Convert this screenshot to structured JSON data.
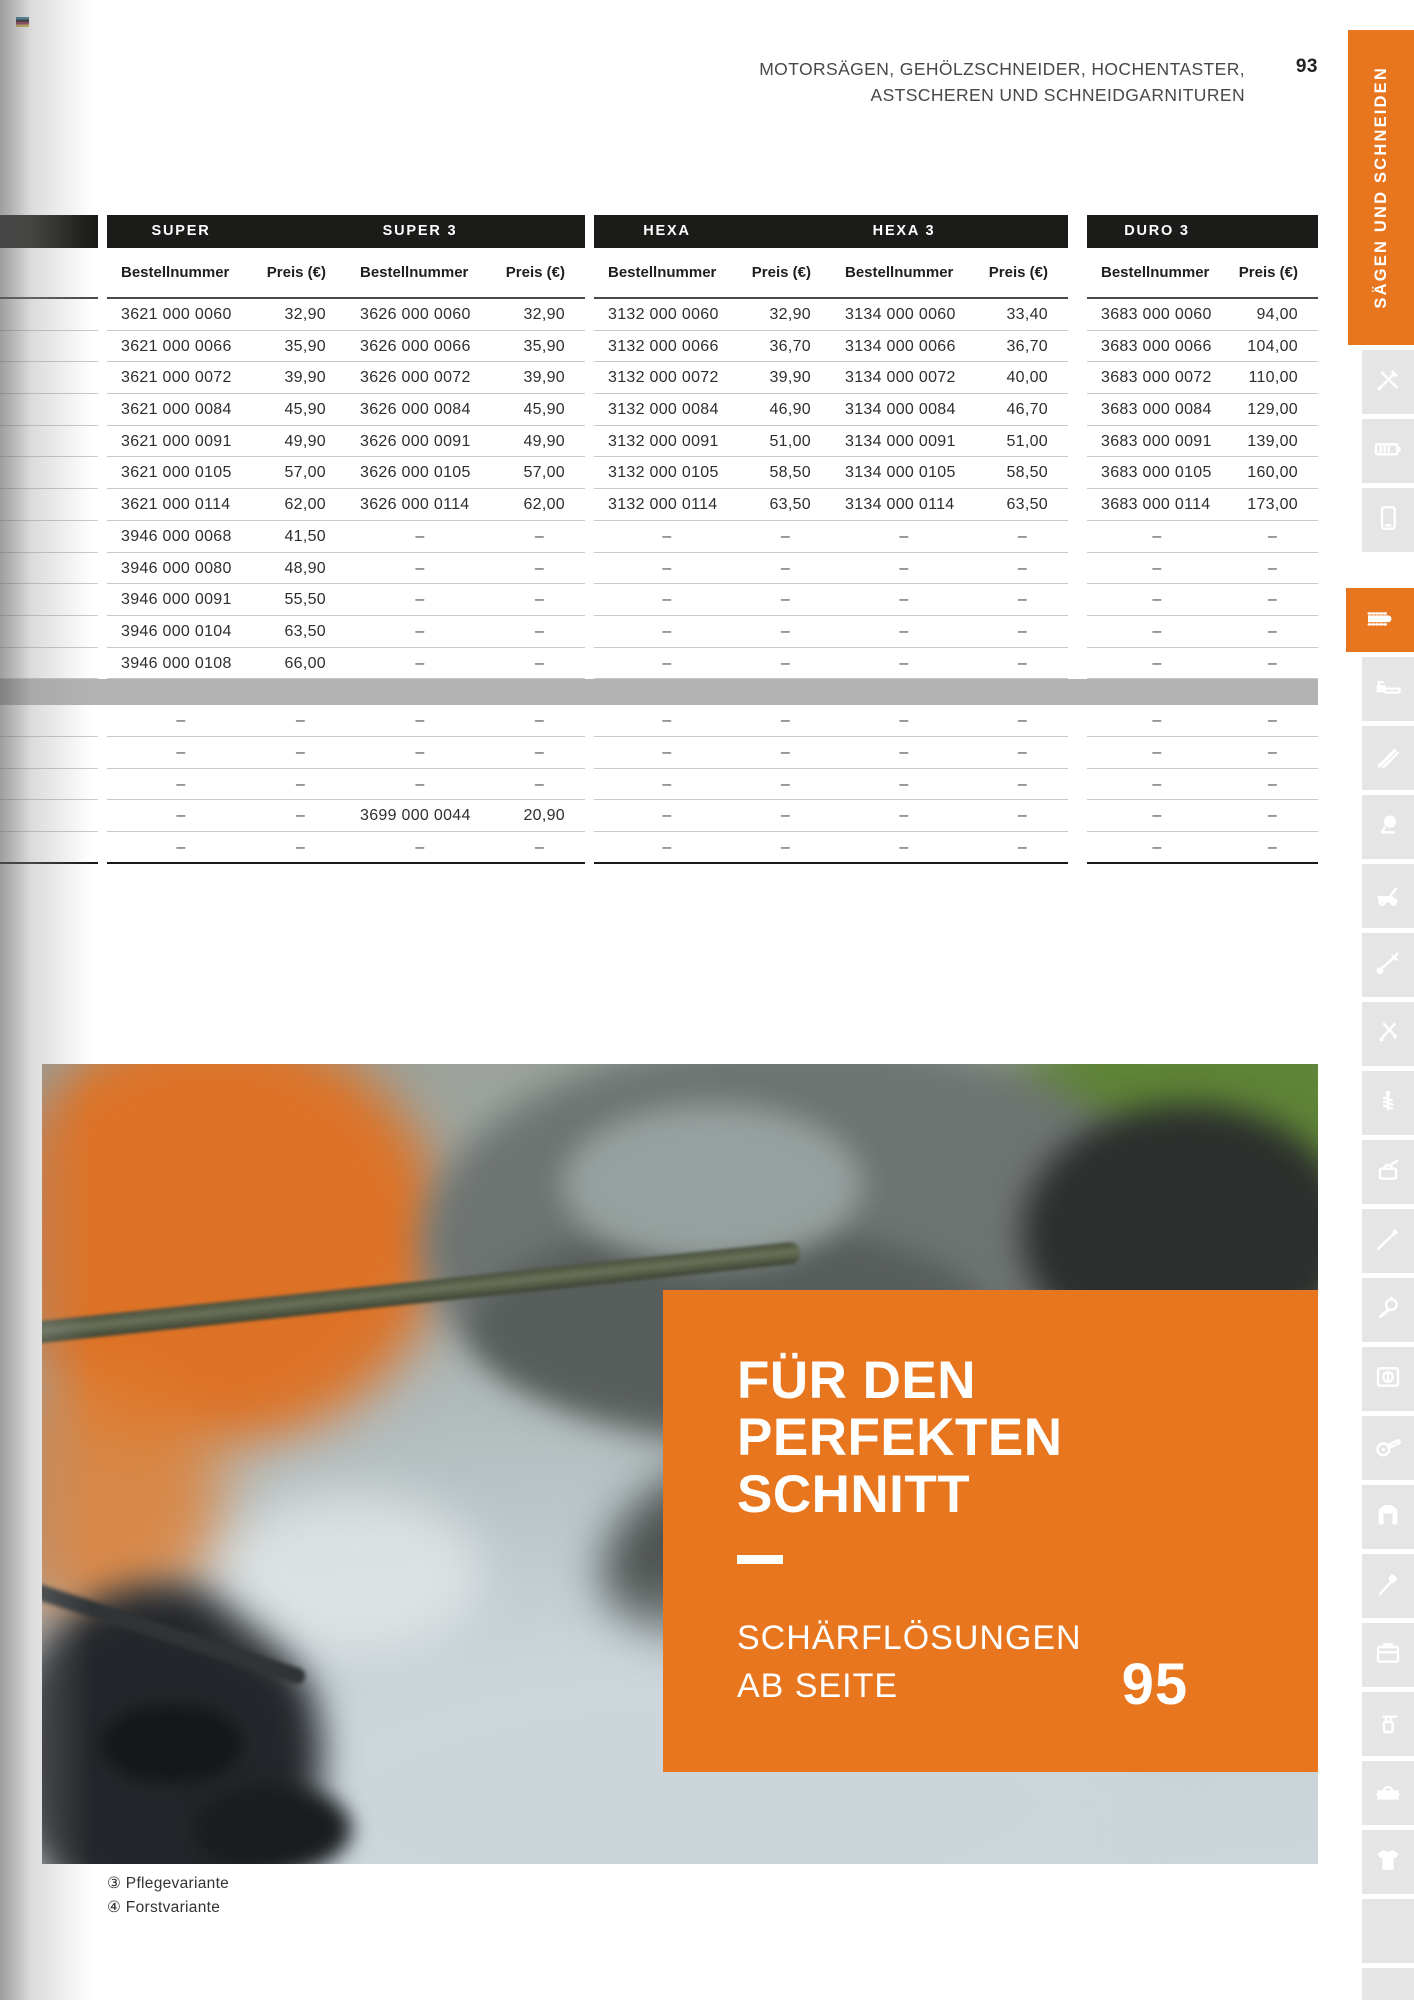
{
  "header": {
    "line1": "MOTORSÄGEN, GEHÖLZSCHNEIDER, HOCHENTASTER,",
    "line2": "ASTSCHEREN UND SCHNEIDGARNITUREN",
    "page": "93"
  },
  "side_tab": {
    "label": "SÄGEN UND SCHNEIDEN"
  },
  "table": {
    "groups": [
      {
        "label": "SUPER"
      },
      {
        "label": "SUPER 3"
      },
      {
        "label": "HEXA"
      },
      {
        "label": "HEXA 3"
      },
      {
        "label": "DURO 3"
      }
    ],
    "col_headers": {
      "bestellnummer": "Bestellnummer",
      "preis": "Preis (€)"
    },
    "rows_main": [
      [
        "3621 000 0060",
        "32,90",
        "3626 000 0060",
        "32,90",
        "3132 000 0060",
        "32,90",
        "3134 000 0060",
        "33,40",
        "3683 000 0060",
        "94,00"
      ],
      [
        "3621 000 0066",
        "35,90",
        "3626 000 0066",
        "35,90",
        "3132 000 0066",
        "36,70",
        "3134 000 0066",
        "36,70",
        "3683 000 0066",
        "104,00"
      ],
      [
        "3621 000 0072",
        "39,90",
        "3626 000 0072",
        "39,90",
        "3132 000 0072",
        "39,90",
        "3134 000 0072",
        "40,00",
        "3683 000 0072",
        "110,00"
      ],
      [
        "3621 000 0084",
        "45,90",
        "3626 000 0084",
        "45,90",
        "3132 000 0084",
        "46,90",
        "3134 000 0084",
        "46,70",
        "3683 000 0084",
        "129,00"
      ],
      [
        "3621 000 0091",
        "49,90",
        "3626 000 0091",
        "49,90",
        "3132 000 0091",
        "51,00",
        "3134 000 0091",
        "51,00",
        "3683 000 0091",
        "139,00"
      ],
      [
        "3621 000 0105",
        "57,00",
        "3626 000 0105",
        "57,00",
        "3132 000 0105",
        "58,50",
        "3134 000 0105",
        "58,50",
        "3683 000 0105",
        "160,00"
      ],
      [
        "3621 000 0114",
        "62,00",
        "3626 000 0114",
        "62,00",
        "3132 000 0114",
        "63,50",
        "3134 000 0114",
        "63,50",
        "3683 000 0114",
        "173,00"
      ],
      [
        "3946 000 0068",
        "41,50",
        "–",
        "–",
        "–",
        "–",
        "–",
        "–",
        "–",
        "–"
      ],
      [
        "3946 000 0080",
        "48,90",
        "–",
        "–",
        "–",
        "–",
        "–",
        "–",
        "–",
        "–"
      ],
      [
        "3946 000 0091",
        "55,50",
        "–",
        "–",
        "–",
        "–",
        "–",
        "–",
        "–",
        "–"
      ],
      [
        "3946 000 0104",
        "63,50",
        "–",
        "–",
        "–",
        "–",
        "–",
        "–",
        "–",
        "–"
      ],
      [
        "3946 000 0108",
        "66,00",
        "–",
        "–",
        "–",
        "–",
        "–",
        "–",
        "–",
        "–"
      ]
    ],
    "rows_extra": [
      [
        "–",
        "–",
        "–",
        "–",
        "–",
        "–",
        "–",
        "–",
        "–",
        "–"
      ],
      [
        "–",
        "–",
        "–",
        "–",
        "–",
        "–",
        "–",
        "–",
        "–",
        "–"
      ],
      [
        "–",
        "–",
        "–",
        "–",
        "–",
        "–",
        "–",
        "–",
        "–",
        "–"
      ],
      [
        "–",
        "–",
        "3699 000 0044",
        "20,90",
        "–",
        "–",
        "–",
        "–",
        "–",
        "–"
      ],
      [
        "–",
        "–",
        "–",
        "–",
        "–",
        "–",
        "–",
        "–",
        "–",
        "–"
      ]
    ]
  },
  "banner": {
    "title_lines": [
      "FÜR DEN",
      "PERFEKTEN",
      "SCHNITT"
    ],
    "subtitle_lines": [
      "SCHÄRFLÖSUNGEN",
      "AB SEITE"
    ],
    "page_ref": "95"
  },
  "footnotes": [
    {
      "label": "③ Pflegevariante"
    },
    {
      "label": "④ Forstvariante"
    }
  ],
  "sidebar": {
    "tiles": [
      {
        "icon": "tools-icon",
        "active": false
      },
      {
        "icon": "battery-icon",
        "active": false
      },
      {
        "icon": "smartphone-icon",
        "active": false
      },
      {
        "icon": "chain-bar-icon",
        "active": true
      },
      {
        "icon": "chainsaw-icon",
        "active": false
      },
      {
        "icon": "hedge-trimmer-icon",
        "active": false
      },
      {
        "icon": "sprayer-icon",
        "active": false
      },
      {
        "icon": "lawn-mower-icon",
        "active": false
      },
      {
        "icon": "brushcutter-icon",
        "active": false
      },
      {
        "icon": "garden-shears-icon",
        "active": false
      },
      {
        "icon": "earth-auger-icon",
        "active": false
      },
      {
        "icon": "vacuum-icon",
        "active": false
      },
      {
        "icon": "pole-pruner-icon",
        "active": false
      },
      {
        "icon": "blower-icon",
        "active": false
      },
      {
        "icon": "robot-mower-icon",
        "active": false
      },
      {
        "icon": "cutoff-machine-icon",
        "active": false
      },
      {
        "icon": "jacket-icon",
        "active": false
      },
      {
        "icon": "axe-icon",
        "active": false
      },
      {
        "icon": "storage-box-icon",
        "active": false
      },
      {
        "icon": "spray-bottle-icon",
        "active": false
      },
      {
        "icon": "toolbox-icon",
        "active": false
      },
      {
        "icon": "tshirt-icon",
        "active": false
      },
      {
        "icon": "empty",
        "active": false
      },
      {
        "icon": "empty",
        "active": false
      }
    ]
  },
  "colors": {
    "accent": "#e8761e",
    "band_black": "#1b1b19",
    "gray_band": "#b3b3b3",
    "tile_gray": "#e5e5e5"
  }
}
